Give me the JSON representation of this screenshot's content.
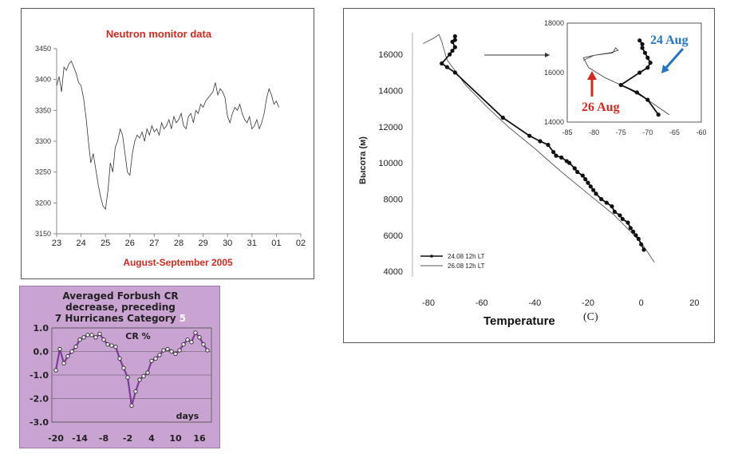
{
  "chart_data": [
    {
      "type": "line",
      "title": "Neutron monitor data",
      "xlabel": "August-September 2005",
      "ylabel": "",
      "xticks": [
        "23",
        "24",
        "25",
        "26",
        "27",
        "28",
        "29",
        "30",
        "31",
        "01",
        "02"
      ],
      "yticks": [
        3150,
        3200,
        3250,
        3300,
        3350,
        3400,
        3450
      ],
      "ylim": [
        3150,
        3450
      ],
      "xlim": [
        23,
        33
      ],
      "grid": false,
      "series": [
        {
          "x": [
            23.0,
            23.1,
            23.2,
            23.3,
            23.4,
            23.5,
            23.6,
            23.7,
            23.8,
            23.9,
            24.0,
            24.1,
            24.2,
            24.3,
            24.4,
            24.5,
            24.6,
            24.7,
            24.8,
            24.9,
            25.0,
            25.1,
            25.2,
            25.3,
            25.4,
            25.5,
            25.6,
            25.7,
            25.8,
            25.9,
            26.0,
            26.1,
            26.2,
            26.3,
            26.4,
            26.5,
            26.6,
            26.7,
            26.8,
            26.9,
            27.0,
            27.1,
            27.2,
            27.3,
            27.4,
            27.5,
            27.6,
            27.7,
            27.8,
            27.9,
            28.0,
            28.1,
            28.2,
            28.3,
            28.4,
            28.5,
            28.6,
            28.7,
            28.8,
            28.9,
            29.0,
            29.1,
            29.2,
            29.3,
            29.4,
            29.5,
            29.6,
            29.7,
            29.8,
            29.9,
            30.0,
            30.1,
            30.2,
            30.3,
            30.4,
            30.5,
            30.6,
            30.7,
            30.8,
            30.9,
            31.0,
            31.1,
            31.2,
            31.3,
            31.4,
            31.5,
            31.6,
            31.7,
            31.8,
            31.9,
            32.0,
            32.1
          ],
          "y": [
            3390,
            3405,
            3380,
            3420,
            3415,
            3425,
            3430,
            3420,
            3410,
            3395,
            3390,
            3370,
            3340,
            3300,
            3265,
            3280,
            3255,
            3230,
            3210,
            3195,
            3190,
            3220,
            3265,
            3250,
            3290,
            3300,
            3320,
            3310,
            3280,
            3250,
            3245,
            3280,
            3300,
            3310,
            3305,
            3315,
            3300,
            3320,
            3310,
            3325,
            3315,
            3320,
            3310,
            3330,
            3320,
            3325,
            3335,
            3320,
            3340,
            3330,
            3335,
            3345,
            3325,
            3320,
            3340,
            3345,
            3330,
            3350,
            3345,
            3360,
            3355,
            3365,
            3370,
            3375,
            3380,
            3395,
            3375,
            3385,
            3380,
            3370,
            3340,
            3330,
            3345,
            3355,
            3350,
            3360,
            3345,
            3335,
            3330,
            3340,
            3320,
            3325,
            3335,
            3320,
            3330,
            3345,
            3370,
            3385,
            3375,
            3360,
            3365,
            3355
          ]
        }
      ]
    },
    {
      "type": "line",
      "title": "Averaged Forbush CR decrease, preceding 7 Hurricanes Category 5",
      "title_lines": [
        "Averaged Forbush CR",
        "decrease, preceding",
        "7 Hurricanes Category "
      ],
      "title_highlight": "5",
      "xlabel": "days",
      "ylabel": "CR %",
      "xticks": [
        -20,
        -14,
        -8,
        -2,
        4,
        10,
        16
      ],
      "yticks": [
        1.0,
        0.0,
        -1.0,
        -2.0,
        -3.0
      ],
      "ytick_labels": [
        "1.0",
        "0.0",
        "-1.0",
        "-2.0",
        "-3.0"
      ],
      "ylim": [
        -3.0,
        1.0
      ],
      "xlim": [
        -21,
        19
      ],
      "grid": true,
      "series": [
        {
          "x": [
            -20,
            -19,
            -18,
            -17,
            -16,
            -15,
            -14,
            -13,
            -12,
            -11,
            -10,
            -9,
            -8,
            -7,
            -6,
            -5,
            -4,
            -3,
            -2,
            -1,
            0,
            1,
            2,
            3,
            4,
            5,
            6,
            7,
            8,
            9,
            10,
            11,
            12,
            13,
            14,
            15,
            16,
            17,
            18
          ],
          "y": [
            -0.8,
            0.1,
            -0.5,
            -0.2,
            0.0,
            0.2,
            0.5,
            0.6,
            0.7,
            0.7,
            0.6,
            0.75,
            0.5,
            0.3,
            0.25,
            0.2,
            -0.3,
            -0.7,
            -1.1,
            -2.3,
            -1.7,
            -1.2,
            -1.05,
            -0.9,
            -0.4,
            -0.3,
            -0.15,
            0.05,
            0.1,
            0.0,
            -0.1,
            0.05,
            0.3,
            0.5,
            0.4,
            0.8,
            0.6,
            0.3,
            0.05
          ]
        }
      ]
    },
    {
      "type": "line",
      "title": "",
      "xlabel": "Temperature (C)",
      "xlabel_suffix": "(C)",
      "ylabel": "Высота (м)",
      "xticks": [
        -80,
        -60,
        -40,
        -20,
        0,
        20
      ],
      "yticks": [
        4000,
        6000,
        8000,
        10000,
        12000,
        14000,
        16000
      ],
      "xlim": [
        -86,
        22
      ],
      "ylim": [
        3700,
        17200
      ],
      "grid": false,
      "legend": "bottom-left",
      "series": [
        {
          "name": "24.08 12h LT",
          "x": [
            -70,
            -70,
            -71,
            -70,
            -71,
            -72,
            -75,
            -73,
            -70,
            -52,
            -42,
            -38,
            -35,
            -33,
            -32,
            -30,
            -28,
            -27,
            -25,
            -24,
            -22,
            -21,
            -20,
            -19,
            -18,
            -17,
            -15,
            -13,
            -11,
            -10,
            -8,
            -7,
            -5,
            -4,
            -3,
            -2,
            -1,
            0,
            1
          ],
          "y": [
            17000,
            16800,
            16700,
            16400,
            16200,
            16000,
            15500,
            15300,
            15000,
            12500,
            11500,
            11200,
            11000,
            10600,
            10400,
            10300,
            10100,
            10000,
            9700,
            9500,
            9300,
            9100,
            8900,
            8700,
            8500,
            8300,
            8000,
            7800,
            7600,
            7300,
            7100,
            6900,
            6700,
            6400,
            6200,
            6000,
            5800,
            5500,
            5200
          ]
        },
        {
          "name": "26.08 12h LT",
          "x": [
            -82,
            -78,
            -76,
            -75,
            -73,
            -66,
            -58,
            -50,
            -40,
            -30,
            -20,
            -10,
            0,
            5
          ],
          "y": [
            16600,
            16900,
            17100,
            16700,
            15700,
            14300,
            13100,
            12000,
            10800,
            9500,
            8300,
            7100,
            5600,
            4500
          ]
        }
      ],
      "inset": {
        "xticks": [
          -85,
          -80,
          -75,
          -70,
          -65,
          -60
        ],
        "yticks": [
          14000,
          16000,
          18000
        ],
        "xlim": [
          -85,
          -60
        ],
        "ylim": [
          14000,
          18000
        ],
        "series": [
          {
            "name": "24 Aug",
            "x": [
              -71.5,
              -71,
              -71,
              -70.5,
              -70,
              -69.5,
              -70,
              -71.5,
              -75,
              -72,
              -70,
              -68
            ],
            "y": [
              17300,
              17150,
              17000,
              16800,
              16600,
              16400,
              16200,
              16000,
              15500,
              15200,
              14900,
              14300
            ]
          },
          {
            "name": "26 Aug",
            "x": [
              -82,
              -80,
              -76.5,
              -76,
              -75.5,
              -77,
              -80,
              -82,
              -81,
              -78,
              -74,
              -70,
              -66
            ],
            "y": [
              16500,
              16700,
              16800,
              17000,
              16900,
              16800,
              16700,
              16600,
              16200,
              15800,
              15400,
              14900,
              14300
            ]
          }
        ],
        "annotations": [
          "24 Aug",
          "26 Aug"
        ]
      }
    }
  ],
  "colors": {
    "neutron_title": "#d42a1e",
    "neutron_xlabel": "#d42a1e",
    "forbush_bg": "#c9a3d1",
    "forbush_line": "#7d3c98",
    "forbush_highlight": "#ffffff",
    "annotation_24": "#2277c4",
    "annotation_26": "#d42a1e"
  }
}
